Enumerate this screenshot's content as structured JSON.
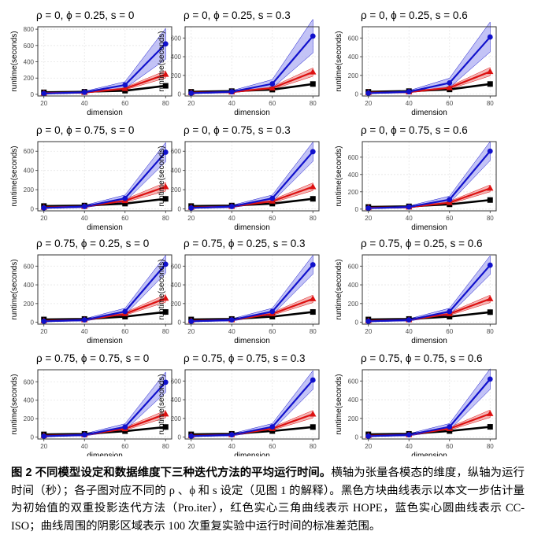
{
  "chart_data": {
    "type": "line",
    "rows": 4,
    "cols": 3,
    "x": [
      20,
      40,
      60,
      80
    ],
    "xlabel": "dimension",
    "ylabel": "runtime(seconds)",
    "xlim": [
      17,
      83
    ],
    "legend": "none",
    "grid": true,
    "colors": {
      "black": "#000000",
      "red": "#dd1111",
      "blue": "#1111cc",
      "red_band": "#f09898",
      "blue_band": "#a9a9f2"
    },
    "panels": [
      {
        "title": "ρ = 0, ϕ = 0.25, s = 0",
        "ylim": [
          -20,
          830
        ],
        "yticks": [
          0,
          200,
          400,
          600,
          800
        ],
        "series": [
          {
            "color": "black",
            "marker": "square",
            "values": [
              25,
              32,
              45,
              105
            ],
            "sd": [
              3,
              4,
              6,
              10
            ]
          },
          {
            "color": "red",
            "marker": "triangle",
            "values": [
              15,
              22,
              70,
              245
            ],
            "sd": [
              4,
              6,
              15,
              45
            ]
          },
          {
            "color": "blue",
            "marker": "circle",
            "values": [
              10,
              25,
              115,
              620
            ],
            "sd": [
              5,
              12,
              40,
              190
            ]
          }
        ]
      },
      {
        "title": "ρ = 0, ϕ = 0.25, s = 0.3",
        "ylim": [
          -20,
          720
        ],
        "yticks": [
          0,
          200,
          400,
          600
        ],
        "series": [
          {
            "color": "black",
            "marker": "square",
            "values": [
              25,
              32,
              48,
              108
            ],
            "sd": [
              3,
              4,
              6,
              10
            ]
          },
          {
            "color": "red",
            "marker": "triangle",
            "values": [
              15,
              22,
              65,
              235
            ],
            "sd": [
              4,
              6,
              15,
              45
            ]
          },
          {
            "color": "blue",
            "marker": "circle",
            "values": [
              10,
              25,
              110,
              620
            ],
            "sd": [
              5,
              12,
              45,
              180
            ]
          }
        ]
      },
      {
        "title": "ρ = 0, ϕ = 0.25, s = 0.6",
        "ylim": [
          -20,
          720
        ],
        "yticks": [
          0,
          200,
          400,
          600
        ],
        "series": [
          {
            "color": "black",
            "marker": "square",
            "values": [
              25,
              32,
              50,
              108
            ],
            "sd": [
              3,
              4,
              6,
              10
            ]
          },
          {
            "color": "red",
            "marker": "triangle",
            "values": [
              15,
              22,
              68,
              240
            ],
            "sd": [
              4,
              6,
              15,
              45
            ]
          },
          {
            "color": "blue",
            "marker": "circle",
            "values": [
              10,
              25,
              120,
              610
            ],
            "sd": [
              5,
              12,
              50,
              160
            ]
          }
        ]
      },
      {
        "title": "ρ = 0, ϕ = 0.75, s = 0",
        "ylim": [
          -20,
          700
        ],
        "yticks": [
          0,
          200,
          400,
          600
        ],
        "series": [
          {
            "color": "black",
            "marker": "square",
            "values": [
              30,
              35,
              55,
              105
            ],
            "sd": [
              3,
              4,
              6,
              10
            ]
          },
          {
            "color": "red",
            "marker": "triangle",
            "values": [
              15,
              25,
              85,
              230
            ],
            "sd": [
              4,
              6,
              15,
              45
            ]
          },
          {
            "color": "blue",
            "marker": "circle",
            "values": [
              10,
              25,
              110,
              590
            ],
            "sd": [
              5,
              12,
              35,
              100
            ]
          }
        ]
      },
      {
        "title": "ρ = 0, ϕ = 0.75, s = 0.3",
        "ylim": [
          -20,
          700
        ],
        "yticks": [
          0,
          200,
          400,
          600
        ],
        "series": [
          {
            "color": "black",
            "marker": "square",
            "values": [
              30,
              35,
              55,
              105
            ],
            "sd": [
              3,
              4,
              6,
              10
            ]
          },
          {
            "color": "red",
            "marker": "triangle",
            "values": [
              15,
              25,
              80,
              230
            ],
            "sd": [
              4,
              6,
              15,
              40
            ]
          },
          {
            "color": "blue",
            "marker": "circle",
            "values": [
              10,
              25,
              110,
              595
            ],
            "sd": [
              5,
              12,
              35,
              100
            ]
          }
        ]
      },
      {
        "title": "ρ = 0, ϕ = 0.75, s = 0.6",
        "ylim": [
          -20,
          780
        ],
        "yticks": [
          0,
          200,
          400,
          600
        ],
        "series": [
          {
            "color": "black",
            "marker": "square",
            "values": [
              25,
              32,
              55,
              105
            ],
            "sd": [
              3,
              4,
              6,
              10
            ]
          },
          {
            "color": "red",
            "marker": "triangle",
            "values": [
              15,
              22,
              75,
              240
            ],
            "sd": [
              4,
              6,
              15,
              40
            ]
          },
          {
            "color": "blue",
            "marker": "circle",
            "values": [
              10,
              25,
              110,
              670
            ],
            "sd": [
              5,
              12,
              40,
              110
            ]
          }
        ]
      },
      {
        "title": "ρ = 0.75, ϕ = 0.25, s = 0",
        "ylim": [
          -20,
          720
        ],
        "yticks": [
          0,
          200,
          400,
          600
        ],
        "series": [
          {
            "color": "black",
            "marker": "square",
            "values": [
              30,
              35,
              60,
              110
            ],
            "sd": [
              3,
              4,
              6,
              10
            ]
          },
          {
            "color": "red",
            "marker": "triangle",
            "values": [
              15,
              25,
              90,
              255
            ],
            "sd": [
              4,
              6,
              15,
              40
            ]
          },
          {
            "color": "blue",
            "marker": "circle",
            "values": [
              10,
              25,
              115,
              620
            ],
            "sd": [
              5,
              12,
              35,
              95
            ]
          }
        ]
      },
      {
        "title": "ρ = 0.75, ϕ = 0.25, s = 0.3",
        "ylim": [
          -20,
          720
        ],
        "yticks": [
          0,
          200,
          400,
          600
        ],
        "series": [
          {
            "color": "black",
            "marker": "square",
            "values": [
              30,
              35,
              60,
              110
            ],
            "sd": [
              3,
              4,
              6,
              10
            ]
          },
          {
            "color": "red",
            "marker": "triangle",
            "values": [
              15,
              25,
              90,
              250
            ],
            "sd": [
              4,
              6,
              15,
              40
            ]
          },
          {
            "color": "blue",
            "marker": "circle",
            "values": [
              10,
              25,
              115,
              615
            ],
            "sd": [
              5,
              12,
              35,
              100
            ]
          }
        ]
      },
      {
        "title": "ρ = 0.75, ϕ = 0.25, s = 0.6",
        "ylim": [
          -20,
          720
        ],
        "yticks": [
          0,
          200,
          400,
          600
        ],
        "series": [
          {
            "color": "black",
            "marker": "square",
            "values": [
              30,
              35,
              60,
              108
            ],
            "sd": [
              3,
              4,
              6,
              10
            ]
          },
          {
            "color": "red",
            "marker": "triangle",
            "values": [
              15,
              25,
              90,
              250
            ],
            "sd": [
              4,
              6,
              15,
              40
            ]
          },
          {
            "color": "blue",
            "marker": "circle",
            "values": [
              10,
              25,
              115,
              610
            ],
            "sd": [
              5,
              12,
              35,
              100
            ]
          }
        ]
      },
      {
        "title": "ρ = 0.75, ϕ = 0.75, s = 0",
        "ylim": [
          -20,
          730
        ],
        "yticks": [
          0,
          200,
          400,
          600
        ],
        "series": [
          {
            "color": "black",
            "marker": "square",
            "values": [
              30,
              35,
              65,
              110
            ],
            "sd": [
              3,
              4,
              6,
              10
            ]
          },
          {
            "color": "red",
            "marker": "triangle",
            "values": [
              15,
              25,
              90,
              250
            ],
            "sd": [
              4,
              6,
              15,
              40
            ]
          },
          {
            "color": "blue",
            "marker": "circle",
            "values": [
              10,
              25,
              110,
              595
            ],
            "sd": [
              5,
              12,
              35,
              110
            ]
          }
        ]
      },
      {
        "title": "ρ = 0.75, ϕ = 0.75, s = 0.3",
        "ylim": [
          -20,
          720
        ],
        "yticks": [
          0,
          200,
          400,
          600
        ],
        "series": [
          {
            "color": "black",
            "marker": "square",
            "values": [
              30,
              35,
              65,
              108
            ],
            "sd": [
              3,
              4,
              6,
              10
            ]
          },
          {
            "color": "red",
            "marker": "triangle",
            "values": [
              15,
              25,
              90,
              245
            ],
            "sd": [
              4,
              6,
              15,
              40
            ]
          },
          {
            "color": "blue",
            "marker": "circle",
            "values": [
              10,
              25,
              110,
              610
            ],
            "sd": [
              5,
              12,
              35,
              100
            ]
          }
        ]
      },
      {
        "title": "ρ = 0.75, ϕ = 0.75, s = 0.6",
        "ylim": [
          -20,
          720
        ],
        "yticks": [
          0,
          200,
          400,
          600
        ],
        "series": [
          {
            "color": "black",
            "marker": "square",
            "values": [
              30,
              35,
              65,
              110
            ],
            "sd": [
              3,
              4,
              6,
              10
            ]
          },
          {
            "color": "red",
            "marker": "triangle",
            "values": [
              15,
              25,
              90,
              250
            ],
            "sd": [
              4,
              6,
              15,
              40
            ]
          },
          {
            "color": "blue",
            "marker": "circle",
            "values": [
              10,
              25,
              110,
              620
            ],
            "sd": [
              5,
              12,
              35,
              110
            ]
          }
        ]
      }
    ]
  },
  "caption": {
    "lead": "图 2  不同模型设定和数据维度下三种迭代方法的平均运行时间。",
    "body": "横轴为张量各模态的维度，纵轴为运行时间（秒）；各子图对应不同的 ρ 、ϕ 和 s 设定（见图 1 的解释）。黑色方块曲线表示以本文一步估计量为初始值的双重投影迭代方法（Pro.iter），红色实心三角曲线表示 HOPE，蓝色实心圆曲线表示 CC-ISO；曲线周围的阴影区域表示 100 次重复实验中运行时间的标准差范围。"
  }
}
